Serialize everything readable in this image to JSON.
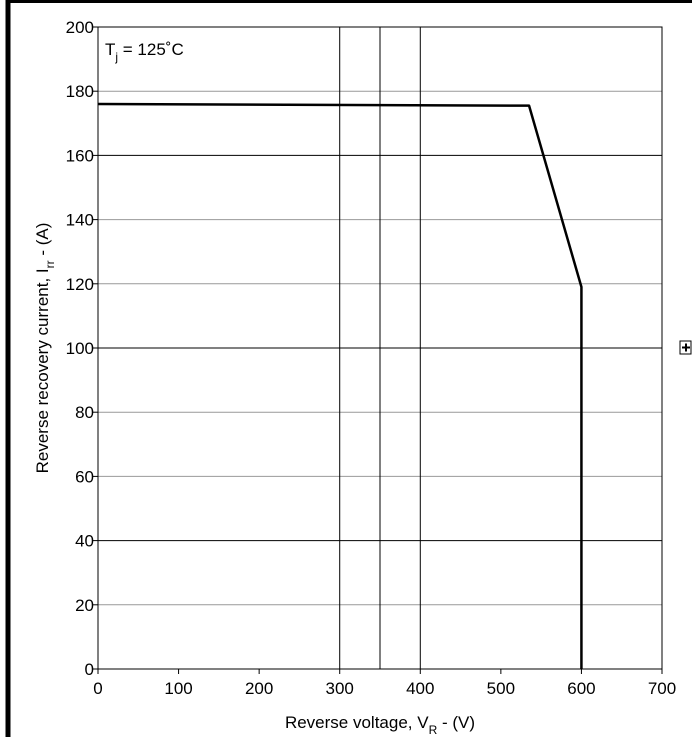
{
  "chart_data": {
    "type": "line",
    "title": "",
    "annotation": {
      "main": "T",
      "sub": "j",
      "rest": " = 125˚C"
    },
    "xlabel": {
      "main": "Reverse voltage, V",
      "sub": "R",
      "rest": " - (V)"
    },
    "ylabel": {
      "main": "Reverse recovery current, I",
      "sub": "rr",
      "rest": " - (A)"
    },
    "xlim": [
      0,
      700
    ],
    "ylim": [
      0,
      200
    ],
    "xticks": [
      0,
      100,
      200,
      300,
      400,
      500,
      600,
      700
    ],
    "yticks": [
      0,
      20,
      40,
      60,
      80,
      100,
      120,
      140,
      160,
      180,
      200
    ],
    "grid": {
      "horizontal_major": [
        40,
        100,
        160
      ],
      "horizontal_minor": [
        20,
        60,
        80,
        120,
        140,
        180
      ],
      "vertical": [
        300,
        350,
        400
      ]
    },
    "series": [
      {
        "x": [
          0,
          535,
          600,
          600
        ],
        "y": [
          176,
          175.5,
          119,
          0
        ]
      }
    ]
  },
  "marker": {
    "icon": "plus-box-icon"
  },
  "colors": {
    "line": "#000000",
    "grid_major": "#000000",
    "grid_minor": "#999999",
    "border": "#000000"
  }
}
